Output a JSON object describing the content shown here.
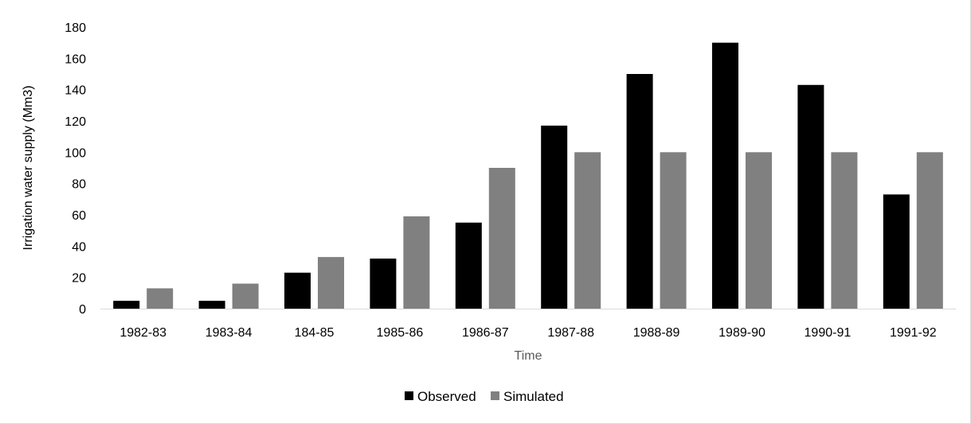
{
  "chart_data": {
    "type": "bar",
    "title": "",
    "xlabel": "Time",
    "ylabel": "Irrigation water supply (Mm3)",
    "categories": [
      "1982-83",
      "1983-84",
      "184-85",
      "1985-86",
      "1986-87",
      "1987-88",
      "1988-89",
      "1989-90",
      "1990-91",
      "1991-92"
    ],
    "series": [
      {
        "name": "Observed",
        "color": "#000000",
        "values": [
          5,
          5,
          23,
          32,
          55,
          117,
          150,
          170,
          143,
          73
        ]
      },
      {
        "name": "Simulated",
        "color": "#808080",
        "values": [
          13,
          16,
          33,
          59,
          90,
          100,
          100,
          100,
          100,
          100
        ]
      }
    ],
    "ylim": [
      0,
      180
    ],
    "yticks": [
      "0",
      "20",
      "40",
      "60",
      "80",
      "100",
      "120",
      "140",
      "160",
      "180"
    ],
    "grid": false,
    "legend_position": "bottom"
  }
}
